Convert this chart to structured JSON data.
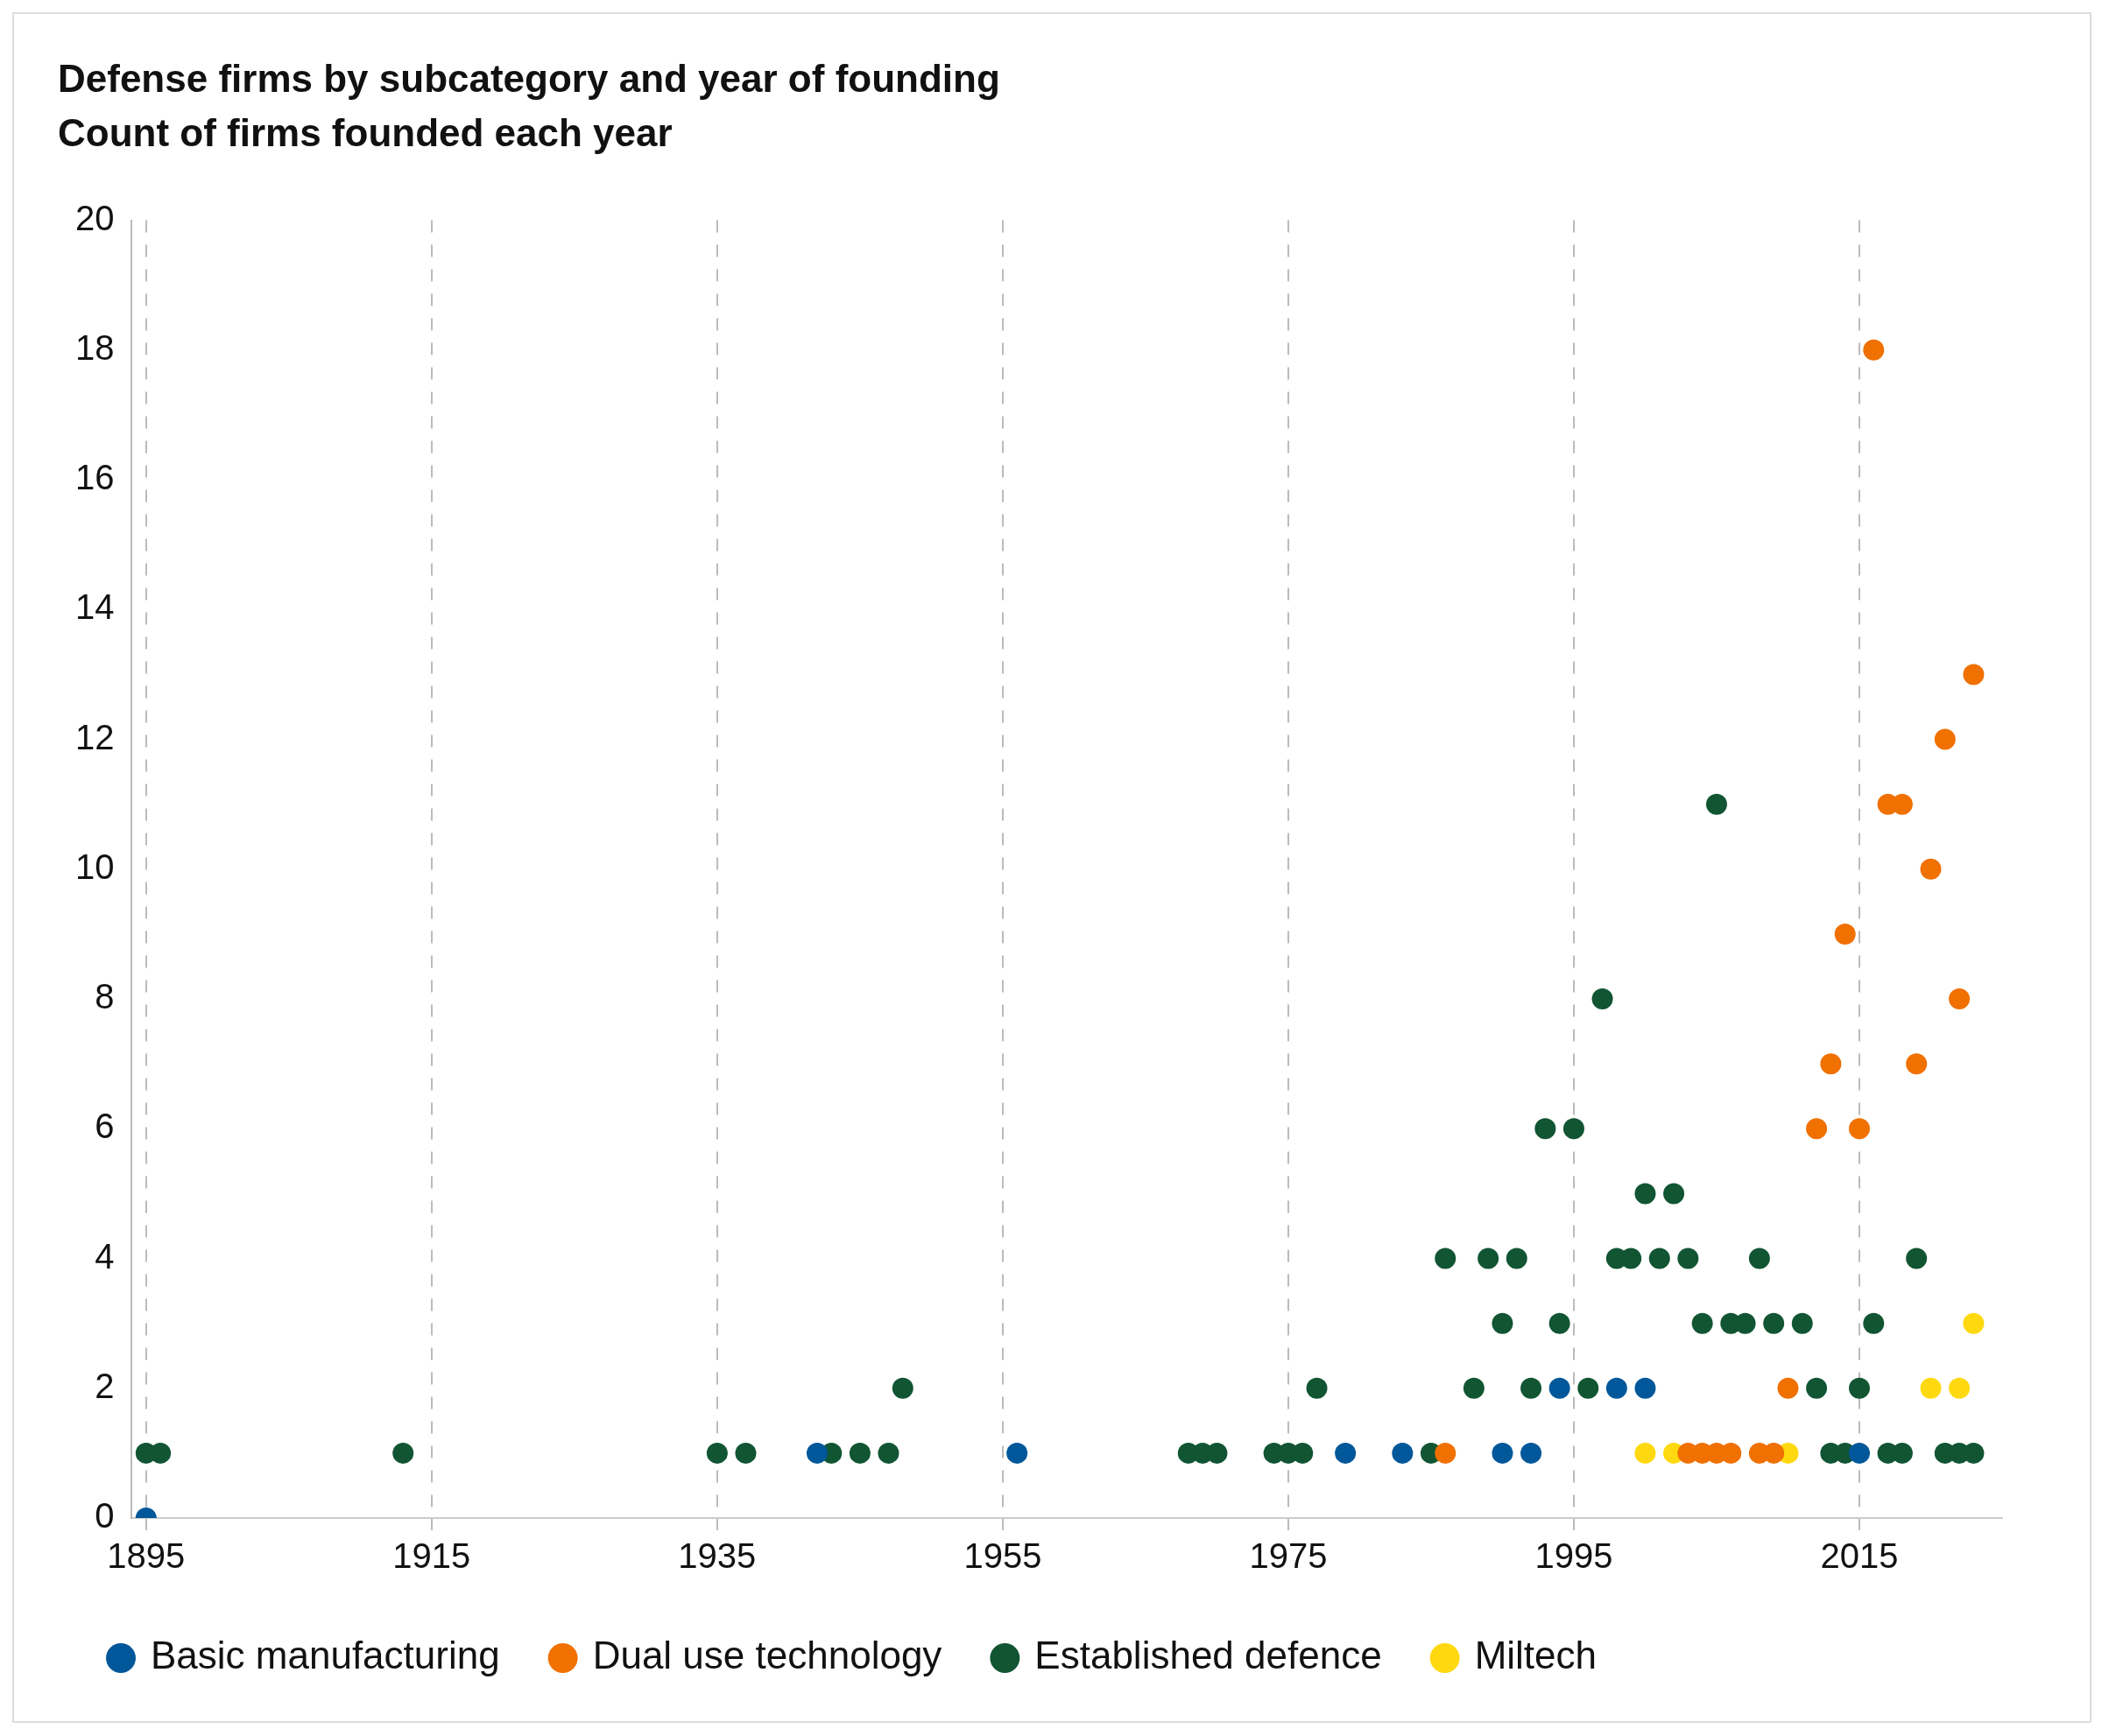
{
  "chart_data": {
    "type": "scatter",
    "title": "Defense firms by subcategory and year of founding",
    "subtitle": "Count of firms founded each year",
    "xlim": [
      1894,
      2025
    ],
    "xticks": [
      1895,
      1915,
      1935,
      1955,
      1975,
      1995,
      2015
    ],
    "ylim": [
      0,
      20
    ],
    "yticks": [
      0,
      2,
      4,
      6,
      8,
      10,
      12,
      14,
      16,
      18,
      20
    ],
    "grid": "x",
    "legend": "bottom",
    "marker": "circle",
    "series": [
      {
        "name": "Basic manufacturing",
        "color": "#00579a",
        "x": [
          1895,
          1942,
          1956,
          1979,
          1983,
          1990,
          1992,
          1994,
          1998,
          2000,
          2015
        ],
        "values": [
          0,
          1,
          1,
          1,
          1,
          1,
          1,
          2,
          2,
          2,
          1
        ]
      },
      {
        "name": "Dual use technology",
        "color": "#f07000",
        "x": [
          1986,
          2003,
          2004,
          2005,
          2006,
          2008,
          2009,
          2010,
          2012,
          2013,
          2014,
          2015,
          2016,
          2017,
          2018,
          2019,
          2020,
          2021,
          2022,
          2023
        ],
        "values": [
          1,
          1,
          1,
          1,
          1,
          1,
          1,
          2,
          6,
          7,
          9,
          6,
          18,
          11,
          11,
          7,
          10,
          12,
          8,
          13
        ]
      },
      {
        "name": "Established defence",
        "color": "#115533",
        "x": [
          1895,
          1896,
          1913,
          1935,
          1937,
          1943,
          1945,
          1947,
          1968,
          1969,
          1970,
          1974,
          1975,
          1976,
          1985,
          2013,
          2014,
          2017,
          2018,
          2021,
          2022,
          2023,
          1948,
          1977,
          1988,
          1992,
          1996,
          2012,
          2015,
          1990,
          1994,
          2004,
          2006,
          2007,
          2009,
          2011,
          2016,
          1986,
          1989,
          1991,
          1998,
          1999,
          2001,
          2003,
          2008,
          2019,
          2000,
          2002,
          1993,
          1995,
          1997,
          2005
        ],
        "values": [
          1,
          1,
          1,
          1,
          1,
          1,
          1,
          1,
          1,
          1,
          1,
          1,
          1,
          1,
          1,
          1,
          1,
          1,
          1,
          1,
          1,
          1,
          2,
          2,
          2,
          2,
          2,
          2,
          2,
          3,
          3,
          3,
          3,
          3,
          3,
          3,
          3,
          4,
          4,
          4,
          4,
          4,
          4,
          4,
          4,
          4,
          5,
          5,
          6,
          6,
          8,
          11
        ]
      },
      {
        "name": "Miltech",
        "color": "#ffd90f",
        "x": [
          2000,
          2002,
          2010,
          2020,
          2022,
          2023
        ],
        "values": [
          1,
          1,
          1,
          2,
          2,
          3
        ]
      }
    ]
  }
}
